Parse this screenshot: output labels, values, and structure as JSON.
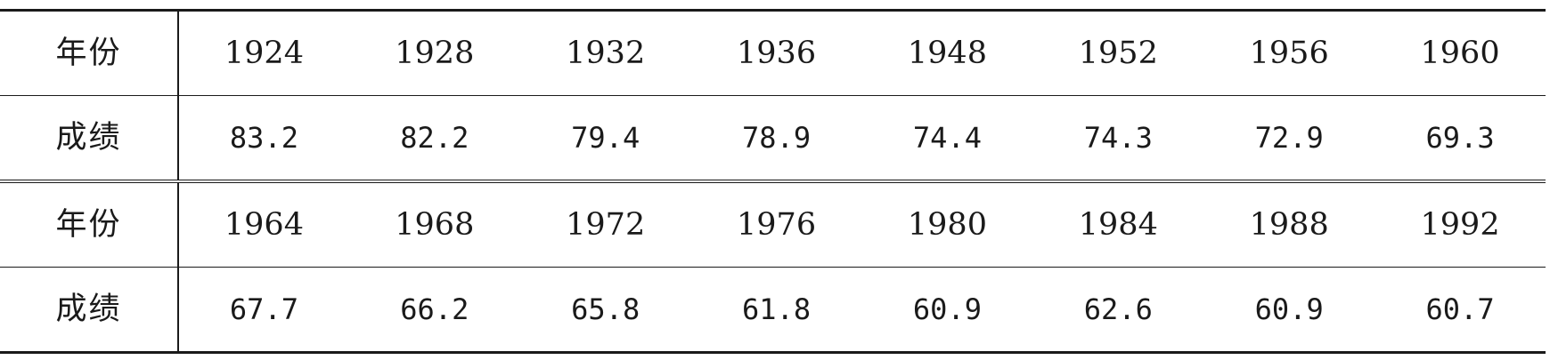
{
  "table": {
    "row_label_year": "年份",
    "row_label_score": "成绩",
    "blocks": [
      {
        "years": [
          "1924",
          "1928",
          "1932",
          "1936",
          "1948",
          "1952",
          "1956",
          "1960"
        ],
        "scores": [
          "83.2",
          "82.2",
          "79.4",
          "78.9",
          "74.4",
          "74.3",
          "72.9",
          "69.3"
        ]
      },
      {
        "years": [
          "1964",
          "1968",
          "1972",
          "1976",
          "1980",
          "1984",
          "1988",
          "1992"
        ],
        "scores": [
          "67.7",
          "66.2",
          "65.8",
          "61.8",
          "60.9",
          "62.6",
          "60.9",
          "60.7"
        ]
      }
    ]
  }
}
